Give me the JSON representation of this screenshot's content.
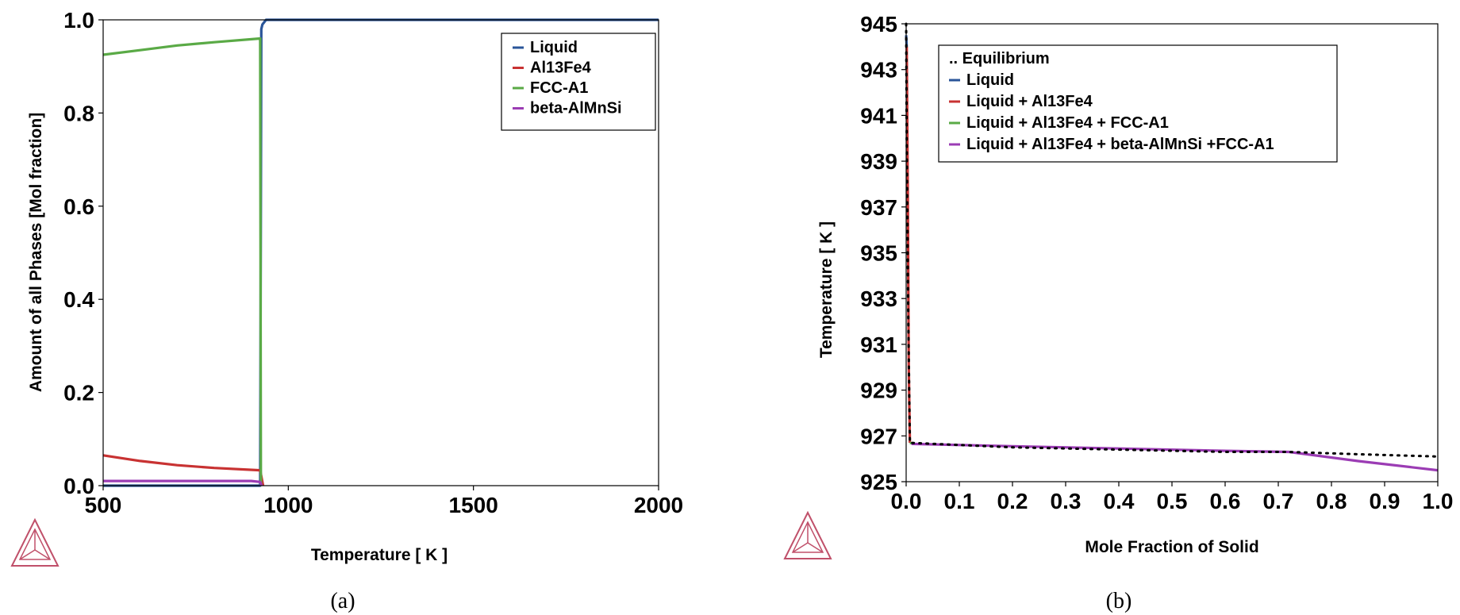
{
  "colors": {
    "liquid": "#2a5599",
    "al13fe4": "#c83232",
    "fcc": "#5aaa46",
    "beta": "#9b3cb4",
    "equilibrium": "#000000",
    "logo": "#c0506a"
  },
  "chart_data": [
    {
      "type": "line",
      "panel_label": "(a)",
      "xlabel": "Temperature [ K ]",
      "ylabel": "Amount of all Phases [Mol fraction]",
      "xlim": [
        500,
        2000
      ],
      "ylim": [
        0,
        1.0
      ],
      "xticks": [
        "500",
        "1000",
        "1500",
        "2000"
      ],
      "yticks": [
        "0.0",
        "0.2",
        "0.4",
        "0.6",
        "0.8",
        "1.0"
      ],
      "grid": false,
      "legend_position": "top-right",
      "series": [
        {
          "name": "Liquid",
          "color_key": "liquid",
          "x": [
            500,
            924,
            927,
            930,
            940,
            2000
          ],
          "y": [
            0,
            0,
            0.98,
            0.99,
            1.0,
            1.0
          ]
        },
        {
          "name": "Al13Fe4",
          "color_key": "al13fe4",
          "x": [
            500,
            600,
            700,
            800,
            924,
            932
          ],
          "y": [
            0.065,
            0.053,
            0.044,
            0.038,
            0.033,
            0
          ]
        },
        {
          "name": "FCC-A1",
          "color_key": "fcc",
          "x": [
            500,
            600,
            700,
            800,
            924,
            926
          ],
          "y": [
            0.925,
            0.935,
            0.945,
            0.952,
            0.96,
            0
          ]
        },
        {
          "name": "beta-AlMnSi",
          "color_key": "beta",
          "x": [
            500,
            700,
            900,
            924,
            928
          ],
          "y": [
            0.01,
            0.01,
            0.01,
            0.008,
            0
          ]
        }
      ]
    },
    {
      "type": "line",
      "panel_label": "(b)",
      "xlabel": "Mole Fraction of Solid",
      "ylabel": "Temperature [ K ]",
      "xlim": [
        0.0,
        1.0
      ],
      "ylim": [
        925,
        945
      ],
      "xticks": [
        "0.0",
        "0.1",
        "0.2",
        "0.3",
        "0.4",
        "0.5",
        "0.6",
        "0.7",
        "0.8",
        "0.9",
        "1.0"
      ],
      "yticks": [
        "925",
        "927",
        "929",
        "931",
        "933",
        "935",
        "937",
        "939",
        "941",
        "943",
        "945"
      ],
      "grid": false,
      "legend_position": "top",
      "series": [
        {
          "name": ".. Equilibrium",
          "color_key": "equilibrium",
          "dashed": true,
          "x": [
            0.0,
            0.001,
            0.004,
            0.007,
            0.2,
            0.4,
            0.6,
            0.72,
            0.85,
            1.0
          ],
          "y": [
            945,
            940,
            932,
            926.7,
            926.5,
            926.4,
            926.3,
            926.3,
            926.2,
            926.1
          ]
        },
        {
          "name": "Liquid",
          "color_key": "liquid",
          "x": [
            0.0,
            0.001
          ],
          "y": [
            944.5,
            944.0
          ]
        },
        {
          "name": "Liquid + Al13Fe4",
          "color_key": "al13fe4",
          "x": [
            0.001,
            0.003,
            0.005,
            0.007
          ],
          "y": [
            944.0,
            938,
            930,
            926.7
          ]
        },
        {
          "name": "Liquid + Al13Fe4 + FCC-A1",
          "color_key": "fcc",
          "x": [
            0.007,
            0.01
          ],
          "y": [
            926.7,
            926.68
          ]
        },
        {
          "name": "Liquid + Al13Fe4 + beta-AlMnSi +FCC-A1",
          "color_key": "beta",
          "x": [
            0.01,
            0.2,
            0.4,
            0.6,
            0.72,
            0.85,
            1.0
          ],
          "y": [
            926.65,
            926.55,
            926.45,
            926.35,
            926.3,
            925.9,
            925.5
          ]
        }
      ]
    }
  ]
}
